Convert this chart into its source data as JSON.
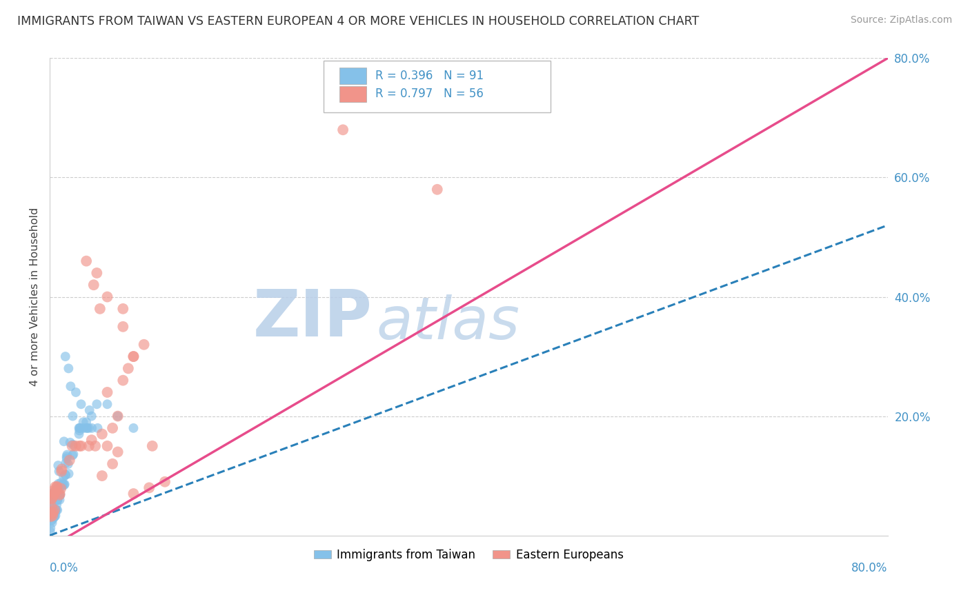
{
  "title": "IMMIGRANTS FROM TAIWAN VS EASTERN EUROPEAN 4 OR MORE VEHICLES IN HOUSEHOLD CORRELATION CHART",
  "source": "Source: ZipAtlas.com",
  "ylabel": "4 or more Vehicles in Household",
  "xlim": [
    0,
    0.8
  ],
  "ylim": [
    0,
    0.8
  ],
  "taiwan_R": 0.396,
  "taiwan_N": 91,
  "eastern_R": 0.797,
  "eastern_N": 56,
  "taiwan_color": "#85c1e9",
  "eastern_color": "#f1948a",
  "taiwan_line_color": "#2980b9",
  "eastern_line_color": "#e74c8b",
  "background_color": "#ffffff",
  "grid_color": "#cccccc",
  "watermark_zip_color": "#b8cfe8",
  "watermark_atlas_color": "#b8cfe8",
  "right_axis_color": "#4292c6",
  "title_color": "#333333",
  "source_color": "#999999"
}
